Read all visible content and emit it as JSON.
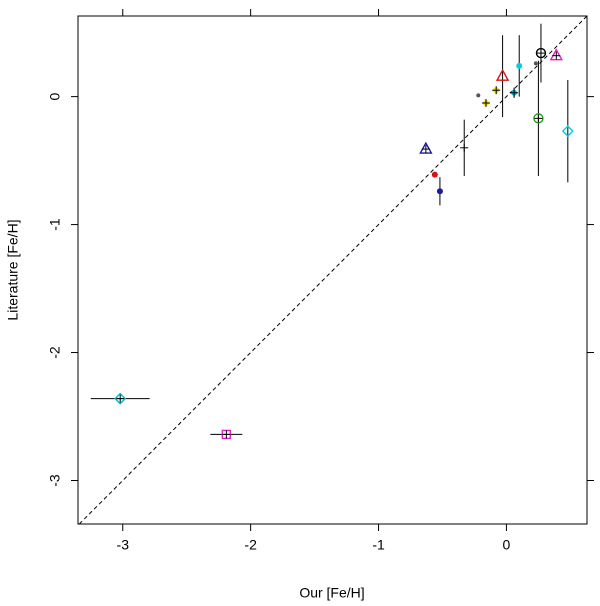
{
  "chart_data": {
    "type": "scatter",
    "xlabel": "Our [Fe/H]",
    "ylabel": "Literature [Fe/H]",
    "xlim": [
      -3.35,
      0.63
    ],
    "ylim": [
      -3.34,
      0.63
    ],
    "xticks": [
      -3,
      -2,
      -1,
      0
    ],
    "yticks": [
      -3,
      -2,
      -1,
      0
    ],
    "identity_line": true,
    "points": [
      {
        "x": -3.02,
        "y": -2.36,
        "xerr": 0.23,
        "color": "#00bcd4",
        "marker": "diamond-plus"
      },
      {
        "x": -2.19,
        "y": -2.64,
        "xerr": 0.125,
        "color": "#e020c0",
        "marker": "square-plus"
      },
      {
        "x": -0.63,
        "y": -0.41,
        "color": "#1a1aa0",
        "marker": "triangle-plus"
      },
      {
        "x": -0.33,
        "y": -0.4,
        "yerr": 0.22,
        "color": "#333333",
        "marker": "plus"
      },
      {
        "x": -0.56,
        "y": -0.61,
        "color": "#dd1111",
        "marker": "dot"
      },
      {
        "x": -0.52,
        "y": -0.74,
        "yerr": 0.11,
        "color": "#1a1aa0",
        "marker": "dot"
      },
      {
        "x": -0.22,
        "y": 0.01,
        "color": "#555555",
        "marker": "dot-small"
      },
      {
        "x": -0.16,
        "y": -0.05,
        "color": "#f0e000",
        "marker": "dot-plus"
      },
      {
        "x": -0.08,
        "y": 0.05,
        "color": "#f0e000",
        "marker": "dot-plus"
      },
      {
        "x": -0.03,
        "y": 0.16,
        "yerr": 0.32,
        "color": "#dd1111",
        "marker": "triangle"
      },
      {
        "x": 0.06,
        "y": 0.03,
        "yerr": 0.04,
        "color": "#00bcd4",
        "marker": "dot-plus"
      },
      {
        "x": 0.1,
        "y": 0.24,
        "yerr": 0.24,
        "color": "#00d0e0",
        "marker": "dot"
      },
      {
        "x": 0.25,
        "y": -0.17,
        "yerr": 0.45,
        "color": "#20a020",
        "marker": "circle-plus"
      },
      {
        "x": 0.23,
        "y": 0.26,
        "color": "#555555",
        "marker": "dot-small"
      },
      {
        "x": 0.27,
        "y": 0.34,
        "yerr": 0.23,
        "color": "#000000",
        "marker": "circle-plus"
      },
      {
        "x": 0.39,
        "y": 0.32,
        "color": "#e020c0",
        "marker": "triangle-plus"
      },
      {
        "x": 0.48,
        "y": -0.27,
        "yerr": 0.4,
        "color": "#00d0e0",
        "marker": "diamond"
      }
    ]
  }
}
